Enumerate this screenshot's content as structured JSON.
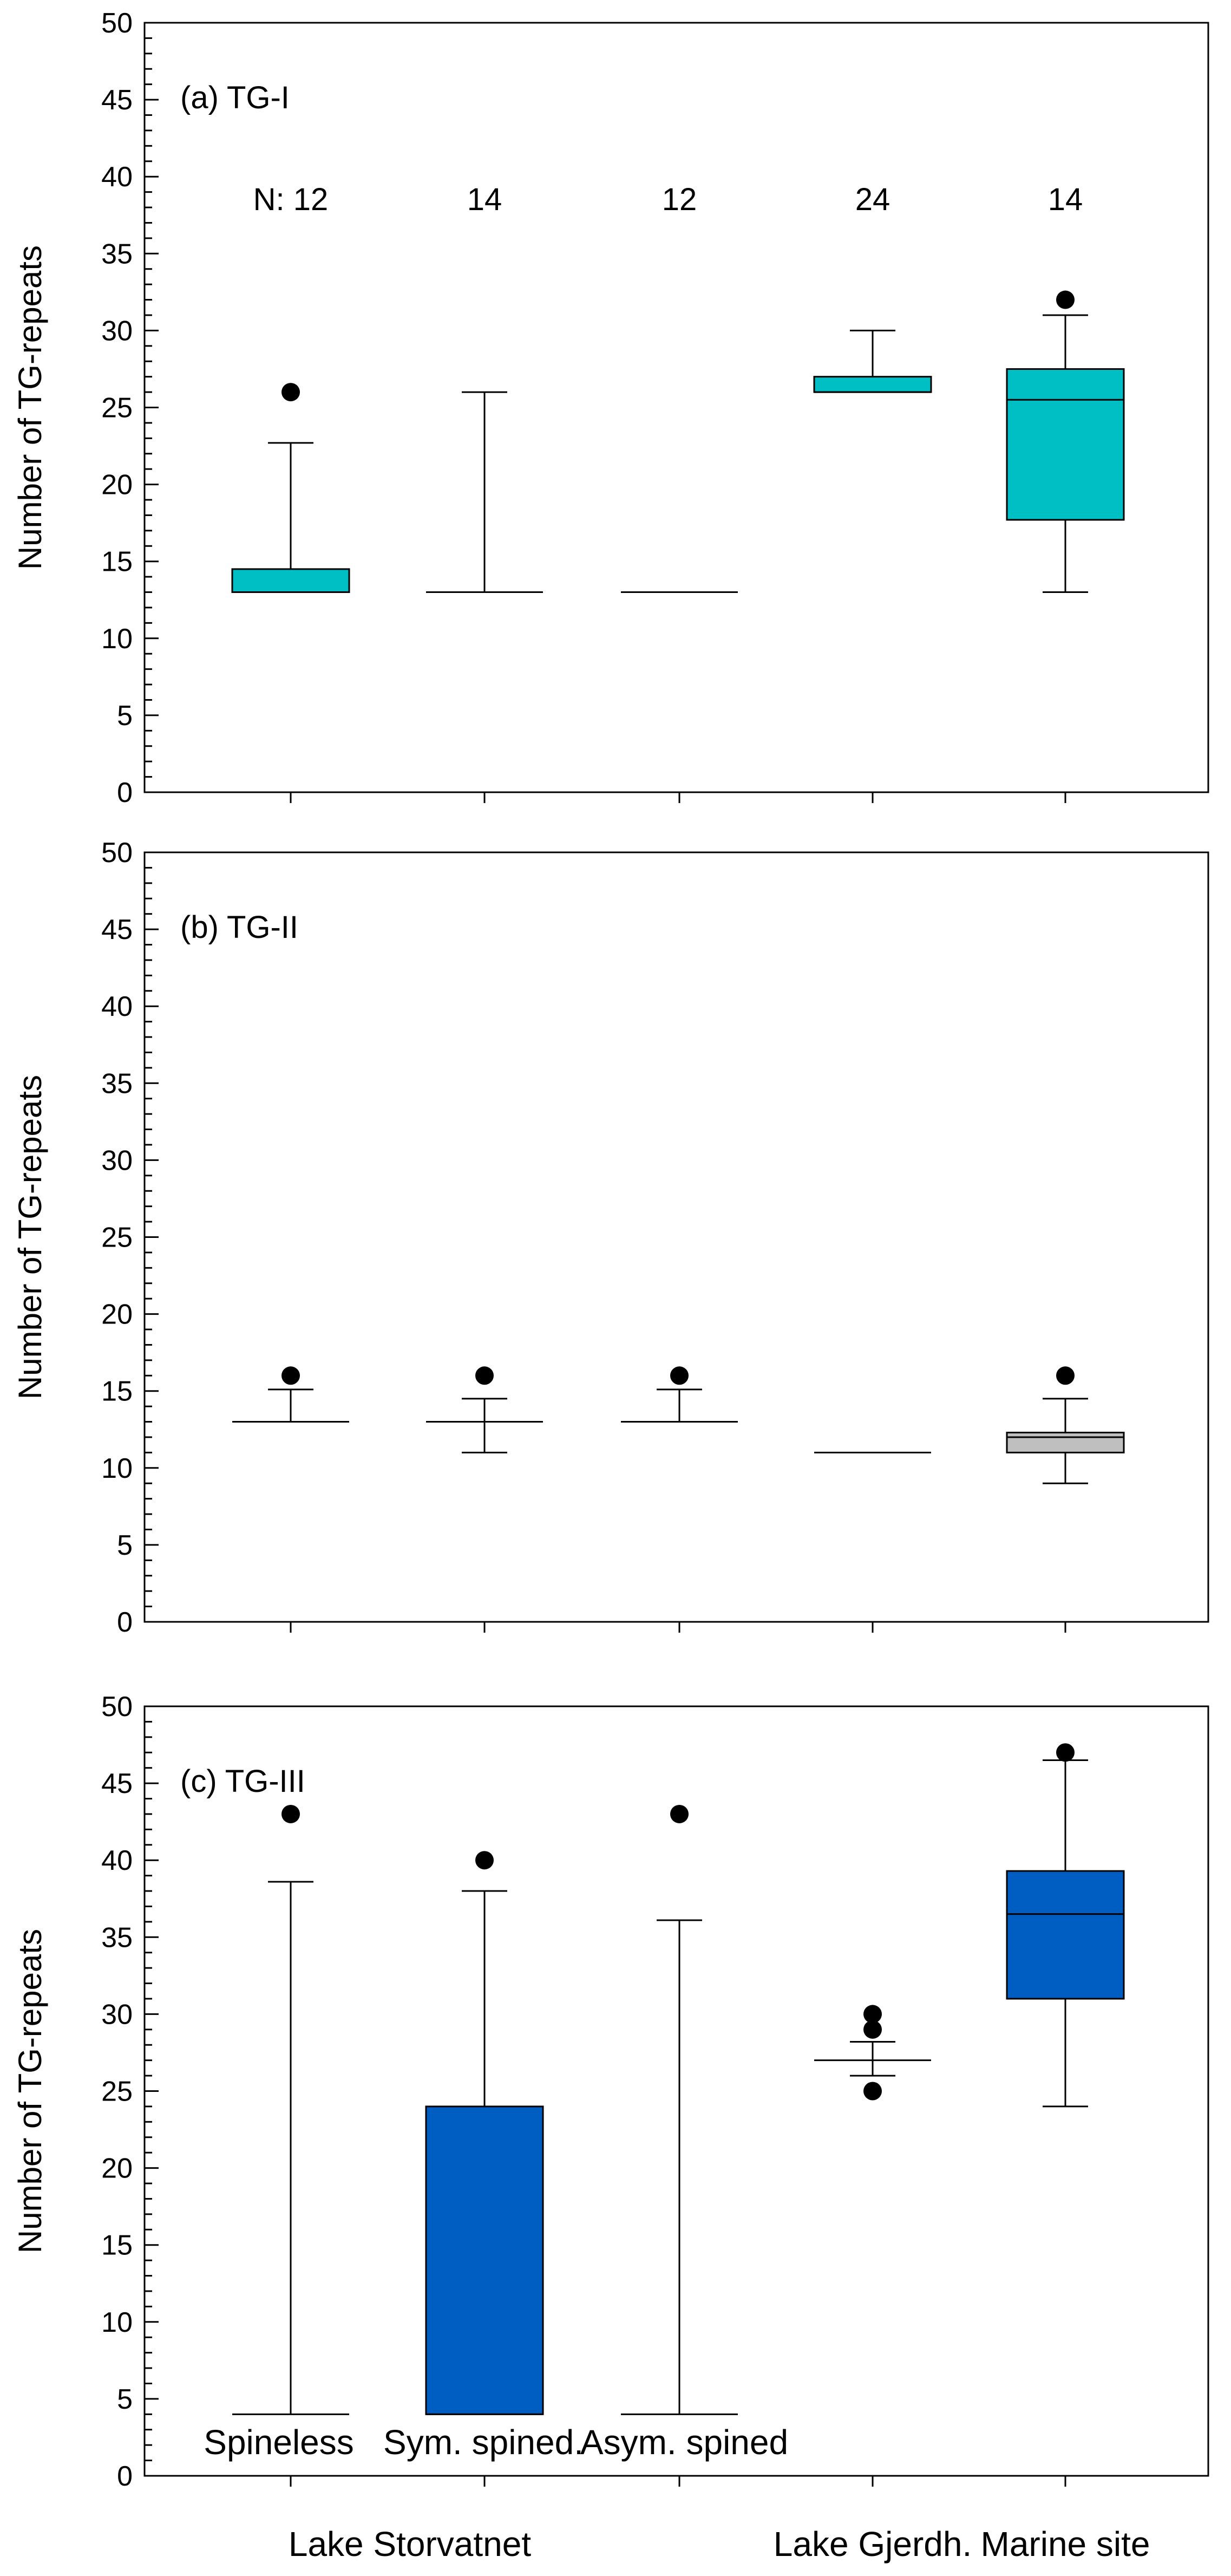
{
  "chart_data": [
    {
      "type": "box",
      "panel_label": "(a) TG-I",
      "ylabel": "Number of TG-repeats",
      "ylim": [
        0,
        50
      ],
      "yticks": [
        "0",
        "5",
        "10",
        "15",
        "20",
        "25",
        "30",
        "35",
        "40",
        "45",
        "50"
      ],
      "box_color": "#00BFC4",
      "n_labels": [
        "N: 12",
        "14",
        "12",
        "24",
        "14"
      ],
      "groups": [
        {
          "whisker_low": 13,
          "q1": 13,
          "median": 13,
          "q3": 14.5,
          "whisker_high": 22.7,
          "outliers": [
            26
          ]
        },
        {
          "whisker_low": 13,
          "q1": 13,
          "median": 13,
          "q3": 13,
          "whisker_high": 26,
          "outliers": []
        },
        {
          "whisker_low": 13,
          "q1": 13,
          "median": 13,
          "q3": 13,
          "whisker_high": 13,
          "outliers": []
        },
        {
          "whisker_low": 26,
          "q1": 26,
          "median": 26,
          "q3": 27,
          "whisker_high": 30,
          "outliers": []
        },
        {
          "whisker_low": 13,
          "q1": 17.7,
          "median": 25.5,
          "q3": 27.5,
          "whisker_high": 31,
          "outliers": [
            32
          ]
        }
      ]
    },
    {
      "type": "box",
      "panel_label": "(b) TG-II",
      "ylabel": "Number of TG-repeats",
      "ylim": [
        0,
        50
      ],
      "yticks": [
        "0",
        "5",
        "10",
        "15",
        "20",
        "25",
        "30",
        "35",
        "40",
        "45",
        "50"
      ],
      "box_color": "#BFBFBF",
      "groups": [
        {
          "whisker_low": 13,
          "q1": 13,
          "median": 13,
          "q3": 13,
          "whisker_high": 15.1,
          "outliers": [
            16
          ]
        },
        {
          "whisker_low": 11,
          "q1": 13,
          "median": 13,
          "q3": 13,
          "whisker_high": 14.5,
          "outliers": [
            16
          ]
        },
        {
          "whisker_low": 13,
          "q1": 13,
          "median": 13,
          "q3": 13,
          "whisker_high": 15.1,
          "outliers": [
            16
          ]
        },
        {
          "whisker_low": 11,
          "q1": 11,
          "median": 11,
          "q3": 11,
          "whisker_high": 11,
          "outliers": []
        },
        {
          "whisker_low": 9,
          "q1": 11,
          "median": 12,
          "q3": 12.3,
          "whisker_high": 14.5,
          "outliers": [
            16
          ]
        }
      ]
    },
    {
      "type": "box",
      "panel_label": "(c) TG-III",
      "ylabel": "Number of TG-repeats",
      "ylim": [
        0,
        50
      ],
      "yticks": [
        "0",
        "5",
        "10",
        "15",
        "20",
        "25",
        "30",
        "35",
        "40",
        "45",
        "50"
      ],
      "box_color": "#005EC2",
      "groups": [
        {
          "whisker_low": 4,
          "q1": 4,
          "median": 4,
          "q3": 4,
          "whisker_high": 38.6,
          "outliers": [
            43
          ]
        },
        {
          "whisker_low": 4,
          "q1": 4,
          "median": 4,
          "q3": 24,
          "whisker_high": 38,
          "outliers": [
            40
          ]
        },
        {
          "whisker_low": 4,
          "q1": 4,
          "median": 4,
          "q3": 4,
          "whisker_high": 36.1,
          "outliers": [
            43
          ]
        },
        {
          "whisker_low": 26,
          "q1": 27,
          "median": 27,
          "q3": 27,
          "whisker_high": 28.2,
          "outliers": [
            25,
            29,
            30
          ]
        },
        {
          "whisker_low": 24,
          "q1": 31,
          "median": 36.5,
          "q3": 39.3,
          "whisker_high": 46.5,
          "outliers": [
            47
          ]
        }
      ]
    }
  ],
  "category_labels": [
    "Spineless",
    "Sym. spined.",
    "Asym. spined"
  ],
  "site_labels": [
    "Lake Storvatnet",
    "Lake Gjerdh.",
    "Marine site"
  ]
}
